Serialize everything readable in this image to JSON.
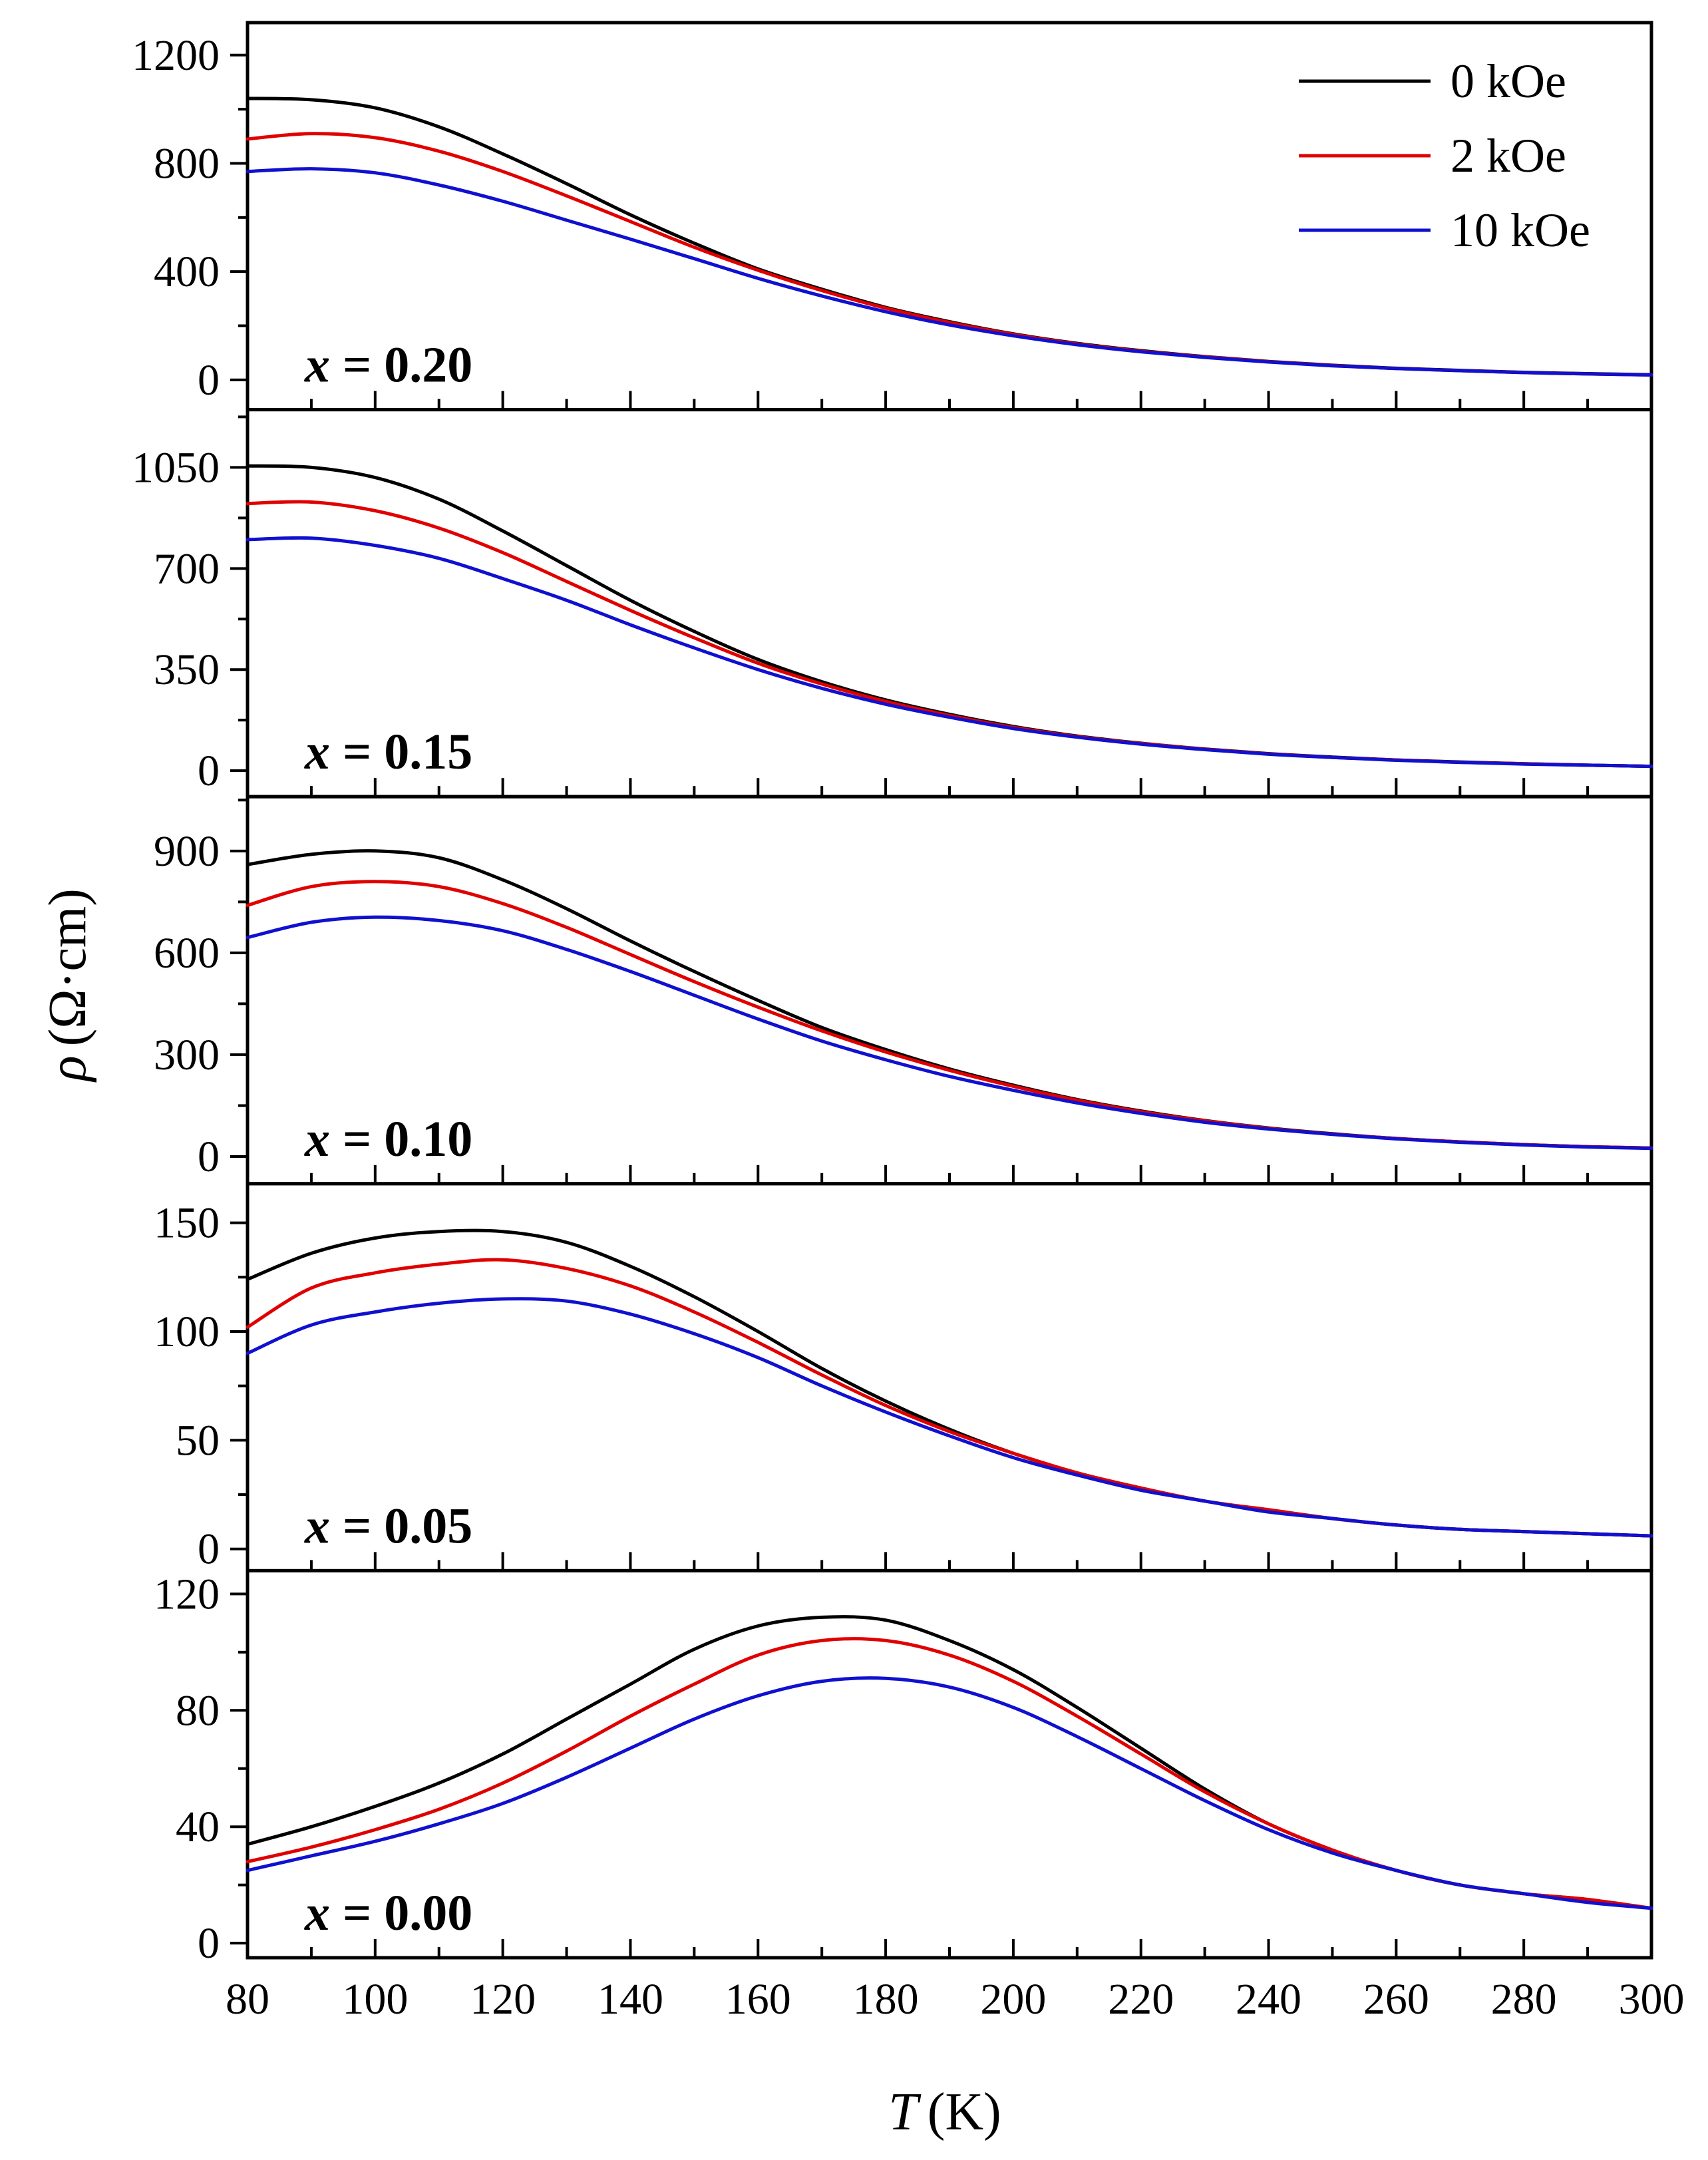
{
  "chart_data": {
    "type": "line",
    "layout": "stacked",
    "x_shared": true,
    "xlabel": "T (K)",
    "xlabel_var": "T",
    "xlabel_unit": "(K)",
    "xlim": [
      80,
      300
    ],
    "xticks": [
      80,
      100,
      120,
      140,
      160,
      180,
      200,
      220,
      240,
      260,
      280,
      300
    ],
    "xtick_labels": [
      "80",
      "100",
      "120",
      "140",
      "160",
      "180",
      "200",
      "220",
      "240",
      "260",
      "280",
      "300"
    ],
    "ylabel": "ρ (Ω·cm)",
    "ylabel_var": "ρ",
    "ylabel_unit": "(Ω·cm)",
    "legend": {
      "placement": "top-right",
      "entries": [
        {
          "label": "0 kOe",
          "color": "#000000"
        },
        {
          "label": "2 kOe",
          "color": "#e00000"
        },
        {
          "label": "10 kOe",
          "color": "#1010d0"
        }
      ]
    },
    "panels": [
      {
        "label": "x = 0.20",
        "label_var": "x",
        "label_rest": " = 0.20",
        "ylim": [
          -110,
          1320
        ],
        "yticks": [
          0,
          400,
          800,
          1200
        ],
        "ytick_labels": [
          "0",
          "400",
          "800",
          "1200"
        ],
        "x": [
          80,
          90,
          100,
          110,
          120,
          130,
          140,
          150,
          160,
          170,
          180,
          190,
          200,
          210,
          220,
          230,
          240,
          250,
          260,
          270,
          280,
          290,
          300
        ],
        "series": [
          {
            "name": "0 kOe",
            "color": "#000000",
            "values": [
              1040,
              1035,
              1005,
              935,
              835,
              725,
              610,
              505,
              410,
              335,
              268,
              215,
              170,
              135,
              108,
              86,
              68,
              54,
              43,
              35,
              28,
              23,
              19
            ]
          },
          {
            "name": "2 kOe",
            "color": "#e00000",
            "values": [
              890,
              910,
              895,
              845,
              770,
              680,
              585,
              490,
              405,
              330,
              265,
              212,
              168,
              133,
              106,
              85,
              67,
              53,
              42,
              34,
              27,
              22,
              18
            ]
          },
          {
            "name": "10 kOe",
            "color": "#1010d0",
            "values": [
              770,
              780,
              765,
              720,
              660,
              590,
              520,
              448,
              375,
              310,
              252,
              203,
              163,
              130,
              104,
              83,
              66,
              52,
              42,
              34,
              27,
              22,
              18
            ]
          }
        ]
      },
      {
        "label": "x = 0.15",
        "label_var": "x",
        "label_rest": " = 0.15",
        "ylim": [
          -90,
          1250
        ],
        "yticks": [
          0,
          350,
          700,
          1050
        ],
        "ytick_labels": [
          "0",
          "350",
          "700",
          "1050"
        ],
        "x": [
          80,
          90,
          100,
          110,
          120,
          130,
          140,
          150,
          160,
          170,
          180,
          190,
          200,
          210,
          220,
          230,
          240,
          250,
          260,
          270,
          280,
          290,
          300
        ],
        "series": [
          {
            "name": "0 kOe",
            "color": "#000000",
            "values": [
              1055,
              1050,
              1015,
              940,
              830,
              710,
              590,
              482,
              385,
              308,
              245,
              195,
              153,
              120,
              95,
              75,
              59,
              47,
              37,
              30,
              24,
              19,
              15
            ]
          },
          {
            "name": "2 kOe",
            "color": "#e00000",
            "values": [
              925,
              930,
              900,
              840,
              755,
              655,
              555,
              460,
              372,
              300,
              240,
              191,
              150,
              118,
              94,
              74,
              58,
              46,
              37,
              29,
              24,
              19,
              15
            ]
          },
          {
            "name": "10 kOe",
            "color": "#1010d0",
            "values": [
              800,
              805,
              780,
              735,
              665,
              590,
              505,
              425,
              350,
              285,
              230,
              185,
              146,
              116,
              92,
              73,
              57,
              46,
              36,
              29,
              23,
              19,
              15
            ]
          }
        ]
      },
      {
        "label": "x = 0.10",
        "label_var": "x",
        "label_rest": " = 0.10",
        "ylim": [
          -80,
          1060
        ],
        "yticks": [
          0,
          300,
          600,
          900
        ],
        "ytick_labels": [
          "0",
          "300",
          "600",
          "900"
        ],
        "x": [
          80,
          90,
          100,
          110,
          120,
          130,
          140,
          150,
          160,
          170,
          180,
          190,
          200,
          210,
          220,
          230,
          240,
          250,
          260,
          270,
          280,
          290,
          300
        ],
        "series": [
          {
            "name": "0 kOe",
            "color": "#000000",
            "values": [
              860,
              890,
              900,
              880,
              815,
              730,
              635,
              545,
              460,
              380,
              315,
              258,
              210,
              168,
              134,
              106,
              84,
              67,
              53,
              43,
              35,
              29,
              25
            ]
          },
          {
            "name": "2 kOe",
            "color": "#e00000",
            "values": [
              740,
              795,
              810,
              795,
              745,
              675,
              595,
              515,
              440,
              370,
              308,
              254,
              207,
              166,
              132,
              105,
              83,
              66,
              53,
              43,
              35,
              29,
              25
            ]
          },
          {
            "name": "10 kOe",
            "color": "#1010d0",
            "values": [
              645,
              690,
              705,
              695,
              665,
              610,
              545,
              475,
              405,
              340,
              285,
              236,
              195,
              158,
              127,
              101,
              81,
              65,
              52,
              42,
              34,
              28,
              24
            ]
          }
        ]
      },
      {
        "label": "x = 0.05",
        "label_var": "x",
        "label_rest": " = 0.05",
        "ylim": [
          -10,
          168
        ],
        "yticks": [
          0,
          50,
          100,
          150
        ],
        "ytick_labels": [
          "0",
          "50",
          "100",
          "150"
        ],
        "x": [
          80,
          90,
          100,
          110,
          120,
          130,
          140,
          150,
          160,
          170,
          180,
          190,
          200,
          210,
          220,
          230,
          240,
          250,
          260,
          270,
          280,
          290,
          300
        ],
        "series": [
          {
            "name": "0 kOe",
            "color": "#000000",
            "values": [
              124,
              136,
              143,
              146,
              146,
              141,
              130,
              116,
              100,
              83,
              68,
              55,
              44,
              35,
              28,
              22,
              18,
              14,
              11,
              9,
              8,
              7,
              6
            ]
          },
          {
            "name": "2 kOe",
            "color": "#e00000",
            "values": [
              102,
              120,
              127,
              131,
              133,
              129,
              121,
              109,
              95,
              80,
              66,
              54,
              44,
              35,
              28,
              22,
              18,
              14,
              11,
              9,
              8,
              7,
              6
            ]
          },
          {
            "name": "10 kOe",
            "color": "#1010d0",
            "values": [
              90,
              103,
              109,
              113,
              115,
              114,
              108,
              99,
              88,
              75,
              63,
              52,
              42,
              34,
              27,
              22,
              17,
              14,
              11,
              9,
              8,
              7,
              6
            ]
          }
        ]
      },
      {
        "label": "x = 0.00",
        "label_var": "x",
        "label_rest": " = 0.00",
        "ylim": [
          -5,
          128
        ],
        "yticks": [
          0,
          40,
          80,
          120
        ],
        "ytick_labels": [
          "0",
          "40",
          "80",
          "120"
        ],
        "x": [
          80,
          90,
          100,
          110,
          120,
          130,
          140,
          150,
          160,
          170,
          180,
          190,
          200,
          210,
          220,
          230,
          240,
          250,
          260,
          270,
          280,
          290,
          300
        ],
        "series": [
          {
            "name": "0 kOe",
            "color": "#000000",
            "values": [
              34,
              40,
              47,
              55,
              65,
              77,
              89,
              101,
              109,
              112,
              111,
              104,
              94,
              81,
              67,
              53,
              41,
              32,
              25,
              20,
              17,
              15,
              12
            ]
          },
          {
            "name": "2 kOe",
            "color": "#e00000",
            "values": [
              28,
              33,
              39,
              46,
              55,
              66,
              78,
              89,
              99,
              104,
              104,
              99,
              90,
              78,
              65,
              52,
              41,
              32,
              25,
              20,
              17,
              15,
              12
            ]
          },
          {
            "name": "10 kOe",
            "color": "#1010d0",
            "values": [
              25,
              30,
              35,
              41,
              48,
              57,
              67,
              77,
              85,
              90,
              91,
              88,
              81,
              71,
              60,
              49,
              39,
              31,
              25,
              20,
              17,
              14,
              12
            ]
          }
        ]
      }
    ]
  }
}
